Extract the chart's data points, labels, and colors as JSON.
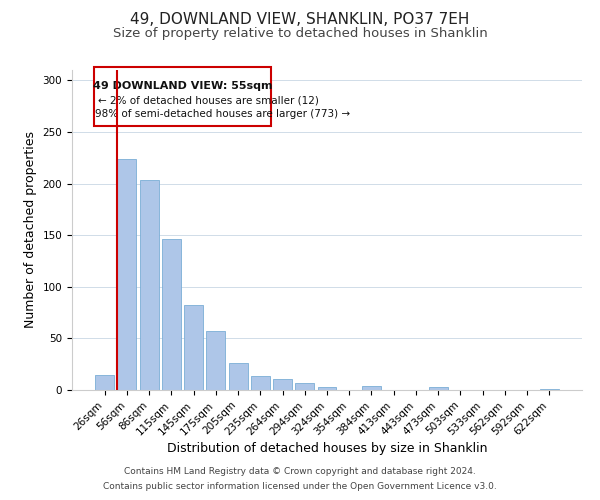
{
  "title": "49, DOWNLAND VIEW, SHANKLIN, PO37 7EH",
  "subtitle": "Size of property relative to detached houses in Shanklin",
  "xlabel": "Distribution of detached houses by size in Shanklin",
  "ylabel": "Number of detached properties",
  "bar_labels": [
    "26sqm",
    "56sqm",
    "86sqm",
    "115sqm",
    "145sqm",
    "175sqm",
    "205sqm",
    "235sqm",
    "264sqm",
    "294sqm",
    "324sqm",
    "354sqm",
    "384sqm",
    "413sqm",
    "443sqm",
    "473sqm",
    "503sqm",
    "533sqm",
    "562sqm",
    "592sqm",
    "622sqm"
  ],
  "bar_values": [
    15,
    224,
    203,
    146,
    82,
    57,
    26,
    14,
    11,
    7,
    3,
    0,
    4,
    0,
    0,
    3,
    0,
    0,
    0,
    0,
    1
  ],
  "bar_color": "#aec6e8",
  "bar_edge_color": "#7aaed6",
  "ylim": [
    0,
    310
  ],
  "yticks": [
    0,
    50,
    100,
    150,
    200,
    250,
    300
  ],
  "annotation_title": "49 DOWNLAND VIEW: 55sqm",
  "annotation_line1": "← 2% of detached houses are smaller (12)",
  "annotation_line2": "98% of semi-detached houses are larger (773) →",
  "annotation_box_color": "#ffffff",
  "annotation_box_edge": "#cc0000",
  "footer_line1": "Contains HM Land Registry data © Crown copyright and database right 2024.",
  "footer_line2": "Contains public sector information licensed under the Open Government Licence v3.0.",
  "background_color": "#ffffff",
  "grid_color": "#d0dce8",
  "title_fontsize": 11,
  "subtitle_fontsize": 9.5,
  "axis_label_fontsize": 9,
  "tick_fontsize": 7.5,
  "footer_fontsize": 6.5
}
